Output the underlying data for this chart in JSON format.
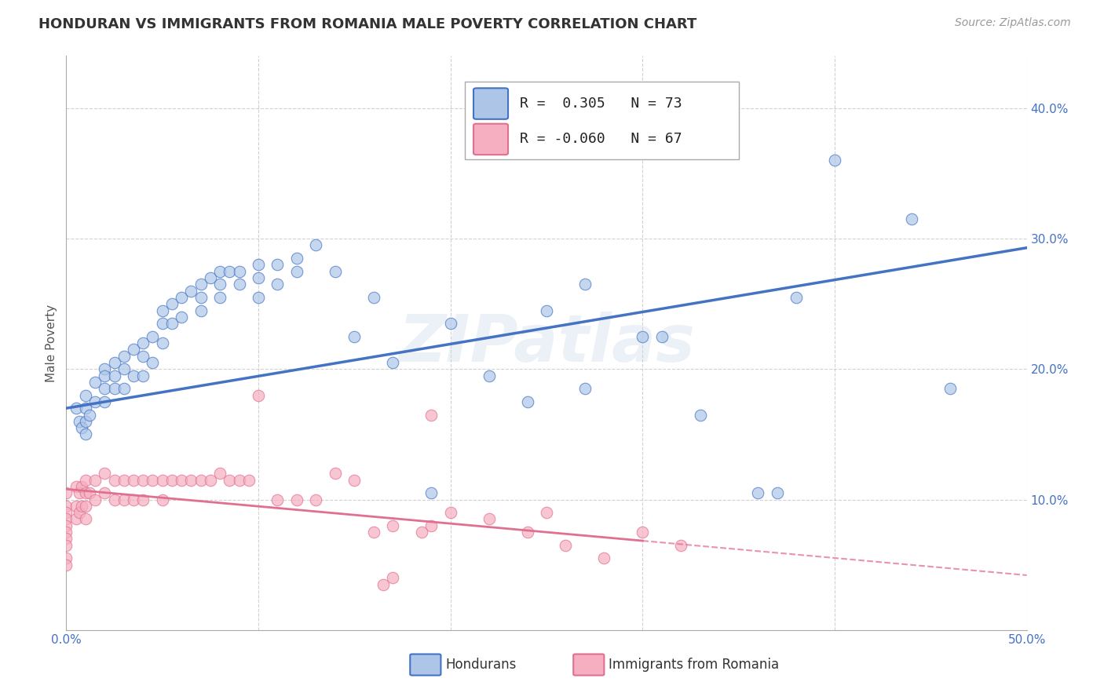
{
  "title": "HONDURAN VS IMMIGRANTS FROM ROMANIA MALE POVERTY CORRELATION CHART",
  "source": "Source: ZipAtlas.com",
  "ylabel": "Male Poverty",
  "xlim": [
    0.0,
    0.5
  ],
  "ylim": [
    0.0,
    0.44
  ],
  "xtick_positions": [
    0.0,
    0.1,
    0.2,
    0.3,
    0.4,
    0.5
  ],
  "xtick_labels": [
    "0.0%",
    "",
    "",
    "",
    "",
    "50.0%"
  ],
  "ytick_positions": [
    0.1,
    0.2,
    0.3,
    0.4
  ],
  "ytick_labels": [
    "10.0%",
    "20.0%",
    "30.0%",
    "40.0%"
  ],
  "grid_color": "#cccccc",
  "background_color": "#ffffff",
  "series1_color": "#adc6e8",
  "series2_color": "#f5afc0",
  "trend1_color": "#4472c4",
  "trend2_color": "#e07090",
  "R1": 0.305,
  "N1": 73,
  "R2": -0.06,
  "N2": 67,
  "legend1_label": "Hondurans",
  "legend2_label": "Immigrants from Romania",
  "watermark": "ZIPatlas",
  "trend1_x_start": 0.0,
  "trend1_y_start": 0.17,
  "trend1_x_end": 0.5,
  "trend1_y_end": 0.293,
  "trend2_x_start": 0.0,
  "trend2_y_start": 0.108,
  "trend2_x_end": 0.5,
  "trend2_y_end": 0.042,
  "trend2_solid_end_x": 0.3,
  "honduran_x": [
    0.005,
    0.007,
    0.008,
    0.01,
    0.01,
    0.01,
    0.01,
    0.012,
    0.015,
    0.015,
    0.02,
    0.02,
    0.02,
    0.02,
    0.025,
    0.025,
    0.025,
    0.03,
    0.03,
    0.03,
    0.035,
    0.035,
    0.04,
    0.04,
    0.04,
    0.045,
    0.045,
    0.05,
    0.05,
    0.05,
    0.055,
    0.055,
    0.06,
    0.06,
    0.065,
    0.07,
    0.07,
    0.07,
    0.075,
    0.08,
    0.08,
    0.08,
    0.085,
    0.09,
    0.09,
    0.1,
    0.1,
    0.1,
    0.11,
    0.11,
    0.12,
    0.12,
    0.13,
    0.14,
    0.15,
    0.16,
    0.17,
    0.19,
    0.2,
    0.22,
    0.24,
    0.25,
    0.27,
    0.3,
    0.31,
    0.33,
    0.36,
    0.37,
    0.38,
    0.4,
    0.27,
    0.44,
    0.46
  ],
  "honduran_y": [
    0.17,
    0.16,
    0.155,
    0.18,
    0.17,
    0.16,
    0.15,
    0.165,
    0.19,
    0.175,
    0.2,
    0.195,
    0.185,
    0.175,
    0.205,
    0.195,
    0.185,
    0.21,
    0.2,
    0.185,
    0.215,
    0.195,
    0.22,
    0.21,
    0.195,
    0.225,
    0.205,
    0.245,
    0.235,
    0.22,
    0.25,
    0.235,
    0.255,
    0.24,
    0.26,
    0.265,
    0.255,
    0.245,
    0.27,
    0.275,
    0.265,
    0.255,
    0.275,
    0.275,
    0.265,
    0.28,
    0.27,
    0.255,
    0.28,
    0.265,
    0.285,
    0.275,
    0.295,
    0.275,
    0.225,
    0.255,
    0.205,
    0.105,
    0.235,
    0.195,
    0.175,
    0.245,
    0.185,
    0.225,
    0.225,
    0.165,
    0.105,
    0.105,
    0.255,
    0.36,
    0.265,
    0.315,
    0.185
  ],
  "romania_x": [
    0.0,
    0.0,
    0.0,
    0.0,
    0.0,
    0.0,
    0.0,
    0.0,
    0.0,
    0.0,
    0.005,
    0.005,
    0.005,
    0.007,
    0.007,
    0.008,
    0.008,
    0.01,
    0.01,
    0.01,
    0.01,
    0.012,
    0.015,
    0.015,
    0.02,
    0.02,
    0.025,
    0.025,
    0.03,
    0.03,
    0.035,
    0.035,
    0.04,
    0.04,
    0.045,
    0.05,
    0.05,
    0.055,
    0.06,
    0.065,
    0.07,
    0.075,
    0.08,
    0.085,
    0.09,
    0.095,
    0.1,
    0.11,
    0.12,
    0.13,
    0.14,
    0.15,
    0.16,
    0.17,
    0.19,
    0.2,
    0.22,
    0.24,
    0.26,
    0.28,
    0.3,
    0.32,
    0.25,
    0.19,
    0.185,
    0.17,
    0.165
  ],
  "romania_y": [
    0.105,
    0.095,
    0.09,
    0.085,
    0.08,
    0.075,
    0.07,
    0.065,
    0.055,
    0.05,
    0.11,
    0.095,
    0.085,
    0.105,
    0.09,
    0.11,
    0.095,
    0.115,
    0.105,
    0.095,
    0.085,
    0.105,
    0.115,
    0.1,
    0.12,
    0.105,
    0.115,
    0.1,
    0.115,
    0.1,
    0.115,
    0.1,
    0.115,
    0.1,
    0.115,
    0.115,
    0.1,
    0.115,
    0.115,
    0.115,
    0.115,
    0.115,
    0.12,
    0.115,
    0.115,
    0.115,
    0.18,
    0.1,
    0.1,
    0.1,
    0.12,
    0.115,
    0.075,
    0.08,
    0.165,
    0.09,
    0.085,
    0.075,
    0.065,
    0.055,
    0.075,
    0.065,
    0.09,
    0.08,
    0.075,
    0.04,
    0.035
  ]
}
